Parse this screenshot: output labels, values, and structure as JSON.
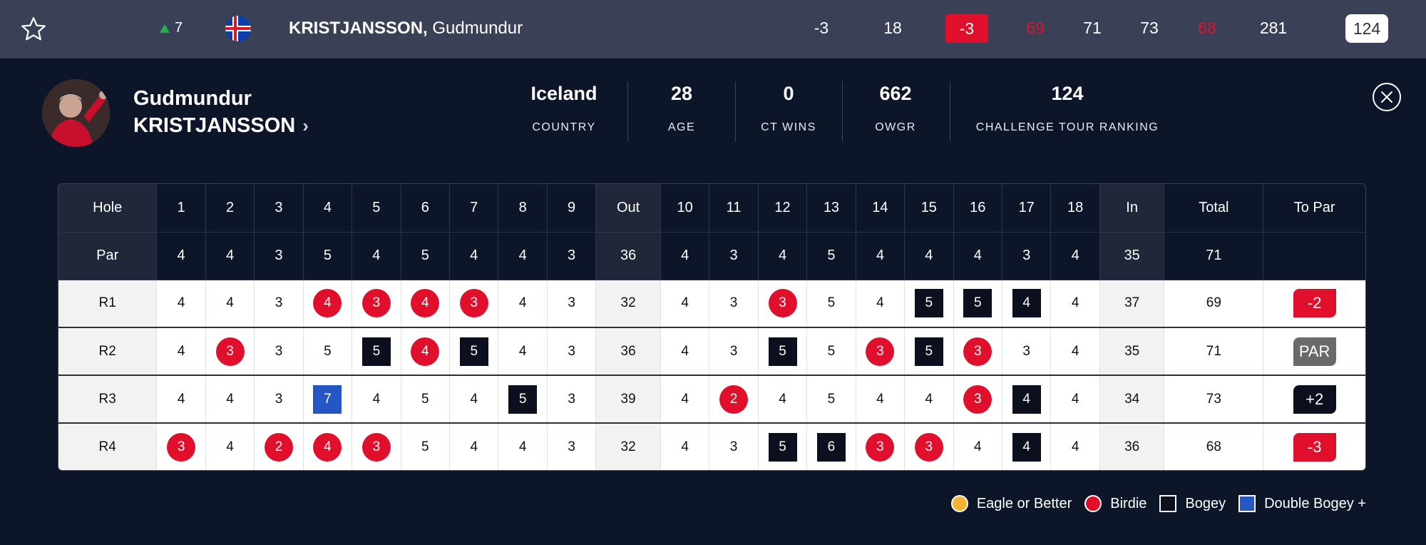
{
  "top_row": {
    "movement": "7",
    "name_last": "KRISTJANSSON,",
    "name_first": "Gudmundur",
    "to_par": "-3",
    "thru": "18",
    "today": "-3",
    "r1": "69",
    "r2": "71",
    "r3": "73",
    "r4": "68",
    "total": "281",
    "rank": "124",
    "colors": {
      "under_par": "#e0102d"
    }
  },
  "profile": {
    "first_name": "Gudmundur",
    "last_name": "KRISTJANSSON",
    "stats": [
      {
        "value": "Iceland",
        "label": "COUNTRY"
      },
      {
        "value": "28",
        "label": "AGE"
      },
      {
        "value": "0",
        "label": "CT WINS"
      },
      {
        "value": "662",
        "label": "OWGR"
      },
      {
        "value": "124",
        "label": "CHALLENGE TOUR RANKING"
      }
    ]
  },
  "scorecard": {
    "header": [
      "Hole",
      "1",
      "2",
      "3",
      "4",
      "5",
      "6",
      "7",
      "8",
      "9",
      "Out",
      "10",
      "11",
      "12",
      "13",
      "14",
      "15",
      "16",
      "17",
      "18",
      "In",
      "Total",
      "To Par"
    ],
    "par": [
      "Par",
      "4",
      "4",
      "3",
      "5",
      "4",
      "5",
      "4",
      "4",
      "3",
      "36",
      "4",
      "3",
      "4",
      "5",
      "4",
      "4",
      "4",
      "3",
      "4",
      "35",
      "71",
      ""
    ],
    "rounds": [
      {
        "label": "R1",
        "scores": [
          "4",
          "4",
          "3",
          "4",
          "3",
          "4",
          "3",
          "4",
          "3",
          "32",
          "4",
          "3",
          "3",
          "5",
          "4",
          "5",
          "5",
          "4",
          "4",
          "37",
          "69"
        ],
        "marks": [
          "",
          "",
          "",
          "birdie",
          "birdie",
          "birdie",
          "birdie",
          "",
          "",
          "",
          "",
          "",
          "birdie",
          "",
          "",
          "bogey",
          "bogey",
          "bogey",
          "",
          "",
          ""
        ],
        "to_par": "-2",
        "to_par_type": "under"
      },
      {
        "label": "R2",
        "scores": [
          "4",
          "3",
          "3",
          "5",
          "5",
          "4",
          "5",
          "4",
          "3",
          "36",
          "4",
          "3",
          "5",
          "5",
          "3",
          "5",
          "3",
          "3",
          "4",
          "35",
          "71"
        ],
        "marks": [
          "",
          "birdie",
          "",
          "",
          "bogey",
          "birdie",
          "bogey",
          "",
          "",
          "",
          "",
          "",
          "bogey",
          "",
          "birdie",
          "bogey",
          "birdie",
          "",
          "",
          "",
          ""
        ],
        "to_par": "PAR",
        "to_par_type": "even"
      },
      {
        "label": "R3",
        "scores": [
          "4",
          "4",
          "3",
          "7",
          "4",
          "5",
          "4",
          "5",
          "3",
          "39",
          "4",
          "2",
          "4",
          "5",
          "4",
          "4",
          "3",
          "4",
          "4",
          "34",
          "73"
        ],
        "marks": [
          "",
          "",
          "",
          "dbogey",
          "",
          "",
          "",
          "bogey",
          "",
          "",
          "",
          "birdie",
          "",
          "",
          "",
          "",
          "birdie",
          "bogey",
          "",
          "",
          ""
        ],
        "to_par": "+2",
        "to_par_type": "over"
      },
      {
        "label": "R4",
        "scores": [
          "3",
          "4",
          "2",
          "4",
          "3",
          "5",
          "4",
          "4",
          "3",
          "32",
          "4",
          "3",
          "5",
          "6",
          "3",
          "3",
          "4",
          "4",
          "4",
          "36",
          "68"
        ],
        "marks": [
          "birdie",
          "",
          "birdie",
          "birdie",
          "birdie",
          "",
          "",
          "",
          "",
          "",
          "",
          "",
          "bogey",
          "bogey",
          "birdie",
          "birdie",
          "",
          "bogey",
          "",
          "",
          ""
        ],
        "to_par": "-3",
        "to_par_type": "under"
      }
    ]
  },
  "legend": [
    {
      "key": "eagle",
      "label": "Eagle or Better",
      "color": "#f5b335"
    },
    {
      "key": "birdie",
      "label": "Birdie",
      "color": "#e0102d"
    },
    {
      "key": "bogey",
      "label": "Bogey",
      "color": "#0b0f1e"
    },
    {
      "key": "dbogey",
      "label": "Double Bogey +",
      "color": "#2457c5"
    }
  ],
  "icons": {
    "favorite": "star-icon",
    "close": "close-icon",
    "flag": "iceland-flag-icon",
    "movement": "arrow-up-icon"
  }
}
